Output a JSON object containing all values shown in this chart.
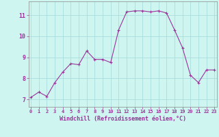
{
  "x": [
    0,
    1,
    2,
    3,
    4,
    5,
    6,
    7,
    8,
    9,
    10,
    11,
    12,
    13,
    14,
    15,
    16,
    17,
    18,
    19,
    20,
    21,
    22,
    23
  ],
  "y": [
    7.1,
    7.35,
    7.15,
    7.8,
    8.3,
    8.7,
    8.65,
    9.3,
    8.9,
    8.9,
    8.75,
    10.3,
    11.15,
    11.2,
    11.2,
    11.15,
    11.2,
    11.1,
    10.3,
    9.45,
    8.15,
    7.8,
    8.4,
    8.4
  ],
  "line_color": "#993399",
  "marker": "+",
  "marker_size": 3,
  "bg_color": "#cef5f0",
  "grid_color": "#aadddd",
  "xlabel": "Windchill (Refroidissement éolien,°C)",
  "xlabel_color": "#993399",
  "tick_color": "#993399",
  "yticks": [
    7,
    8,
    9,
    10,
    11
  ],
  "xticks": [
    0,
    1,
    2,
    3,
    4,
    5,
    6,
    7,
    8,
    9,
    10,
    11,
    12,
    13,
    14,
    15,
    16,
    17,
    18,
    19,
    20,
    21,
    22,
    23
  ],
  "xlim": [
    -0.3,
    23.3
  ],
  "ylim": [
    6.65,
    11.65
  ]
}
